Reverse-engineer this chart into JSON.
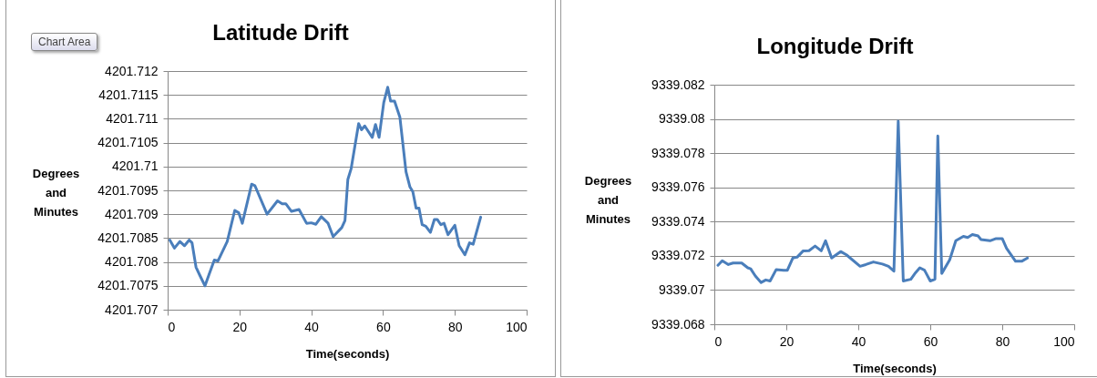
{
  "chart_data": [
    {
      "type": "line",
      "title": "Latitude Drift",
      "xlabel": "Time(seconds)",
      "ylabel": "Degrees and Minutes",
      "annotations": [
        "Chart Area"
      ],
      "grid": "y",
      "xlim": [
        0,
        100
      ],
      "xticks": [
        0,
        20,
        40,
        60,
        80,
        100
      ],
      "ylim": [
        4201.707,
        4201.712
      ],
      "yticks": [
        4201.707,
        4201.7075,
        4201.708,
        4201.7085,
        4201.709,
        4201.7095,
        4201.71,
        4201.7105,
        4201.711,
        4201.7115,
        4201.712
      ],
      "series": [
        {
          "color": "#4a7ebb",
          "x": [
            0.6,
            1.9,
            3.4,
            4.7,
            6.0,
            6.8,
            7.9,
            8.9,
            10.4,
            11.5,
            13.0,
            14.0,
            16.6,
            18.7,
            19.8,
            20.8,
            23.4,
            24.3,
            27.7,
            30.6,
            31.9,
            32.9,
            34.5,
            36.6,
            38.7,
            40.0,
            41.3,
            42.8,
            44.7,
            46.1,
            48.5,
            49.4,
            50.2,
            51.1,
            53.2,
            54.0,
            54.9,
            57.0,
            57.9,
            58.9,
            60.2,
            61.3,
            62.1,
            63.2,
            64.7,
            66.4,
            67.5,
            68.3,
            69.2,
            70.0,
            70.9,
            71.9,
            73.2,
            74.3,
            75.1,
            76.1,
            77.0,
            78.1,
            80.0,
            81.2,
            82.8,
            84.1,
            85.1,
            87.2
          ],
          "values": [
            4201.70846,
            4201.70829,
            4201.70843,
            4201.70834,
            4201.70846,
            4201.7084,
            4201.70789,
            4201.70773,
            4201.7075,
            4201.70773,
            4201.70804,
            4201.70802,
            4201.70843,
            4201.70908,
            4201.70903,
            4201.70881,
            4201.70963,
            4201.7096,
            4201.709,
            4201.70928,
            4201.70922,
            4201.70922,
            4201.70906,
            4201.7091,
            4201.70881,
            4201.70882,
            4201.70879,
            4201.70895,
            4201.70881,
            4201.70853,
            4201.70872,
            4201.70887,
            4201.70973,
            4201.70995,
            4201.7109,
            4201.71077,
            4201.71085,
            4201.71061,
            4201.71088,
            4201.71061,
            4201.71134,
            4201.71166,
            4201.71137,
            4201.71137,
            4201.71103,
            4201.70989,
            4201.70957,
            4201.70947,
            4201.70913,
            4201.70913,
            4201.70878,
            4201.70875,
            4201.70862,
            4201.70889,
            4201.70889,
            4201.70878,
            4201.70881,
            4201.70857,
            4201.70877,
            4201.70834,
            4201.70815,
            4201.7084,
            4201.70837,
            4201.70894
          ]
        }
      ]
    },
    {
      "type": "line",
      "title": "Longitude Drift",
      "xlabel": "Time(seconds)",
      "ylabel": "Degrees and Minutes",
      "grid": "y",
      "xlim": [
        0,
        100
      ],
      "xticks": [
        0,
        20,
        40,
        60,
        80,
        100
      ],
      "ylim": [
        9339.068,
        9339.082
      ],
      "yticks": [
        9339.068,
        9339.07,
        9339.072,
        9339.074,
        9339.076,
        9339.078,
        9339.08,
        9339.082
      ],
      "series": [
        {
          "color": "#4a7ebb",
          "x": [
            1.0,
            2.2,
            3.9,
            5.2,
            7.6,
            9.3,
            10.1,
            11.4,
            13.0,
            14.3,
            15.5,
            17.2,
            19.3,
            20.3,
            21.8,
            23.0,
            24.7,
            26.3,
            28.0,
            29.7,
            30.9,
            32.6,
            35.1,
            36.7,
            40.5,
            42.1,
            44.2,
            46.7,
            48.4,
            49.9,
            51.1,
            52.5,
            54.6,
            55.9,
            57.1,
            58.4,
            60.0,
            61.3,
            62.1,
            63.2,
            65.4,
            67.1,
            69.2,
            70.4,
            71.7,
            73.3,
            74.1,
            76.6,
            78.3,
            80.0,
            81.2,
            83.7,
            85.4,
            87.0
          ],
          "values": [
            9339.07145,
            9339.07171,
            9339.07149,
            9339.07158,
            9339.07158,
            9339.0713,
            9339.07124,
            9339.07082,
            9339.07044,
            9339.07059,
            9339.07053,
            9339.0712,
            9339.07116,
            9339.07116,
            9339.07187,
            9339.07192,
            9339.07229,
            9339.0723,
            9339.07257,
            9339.07229,
            9339.07288,
            9339.07187,
            9339.07225,
            9339.07206,
            9339.07139,
            9339.07149,
            9339.07164,
            9339.07152,
            9339.07139,
            9339.0711,
            9339.07987,
            9339.07053,
            9339.07063,
            9339.07101,
            9339.0713,
            9339.07116,
            9339.07053,
            9339.07063,
            9339.07901,
            9339.07097,
            9339.07177,
            9339.07288,
            9339.07314,
            9339.07307,
            9339.07324,
            9339.07316,
            9339.07295,
            9339.07288,
            9339.07301,
            9339.07301,
            9339.07244,
            9339.07168,
            9339.07168,
            9339.07187
          ]
        }
      ]
    }
  ]
}
